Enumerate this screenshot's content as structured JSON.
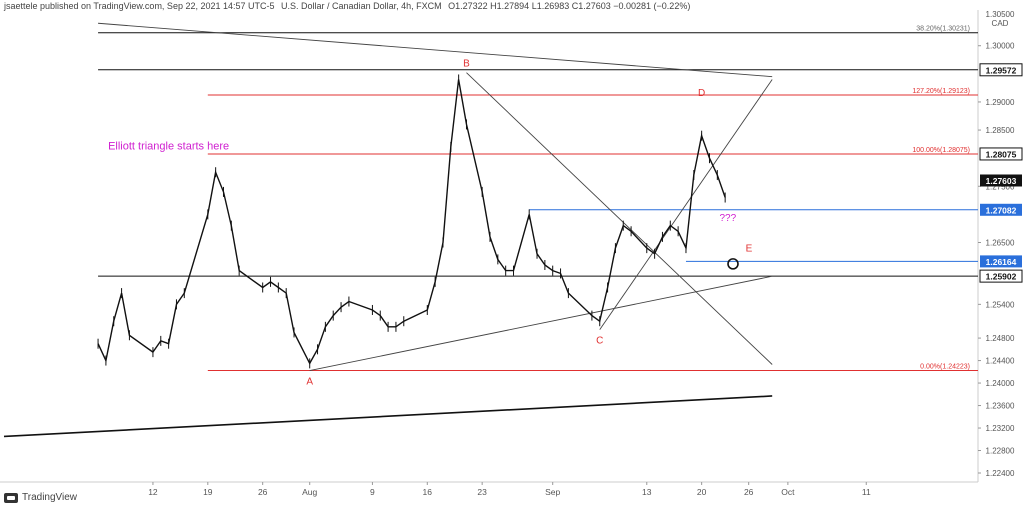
{
  "header": {
    "publisher": "jsaettele published on TradingView.com, Sep 22, 2021 14:57 UTC-5",
    "symbol": "U.S. Dollar / Canadian Dollar, 4h, FXCM",
    "ohlc": "O1.27322  H1.27894  L1.26983  C1.27603  −0.00281 (−0.22%)"
  },
  "footer": {
    "brand": "TradingView"
  },
  "colors": {
    "red": "#e03030",
    "blue": "#2a6fdb",
    "magenta": "#d020d0",
    "candle": "#111111",
    "line": "#444444"
  },
  "chart_data": {
    "type": "line",
    "price_axis": {
      "currency": "CAD",
      "top_label": "1.30500",
      "ticks": [
        "1.30000",
        "1.29000",
        "1.28500",
        "1.27500",
        "1.26500",
        "1.25400",
        "1.24800",
        "1.24400",
        "1.24000",
        "1.23600",
        "1.23200",
        "1.22800",
        "1.22400"
      ],
      "ylim": [
        1.2224,
        1.306
      ]
    },
    "time_axis": {
      "ticks": [
        "12",
        "19",
        "26",
        "Aug",
        "9",
        "16",
        "23",
        "Sep",
        "13",
        "20",
        "26",
        "Oct",
        "11"
      ]
    },
    "price_badges": [
      {
        "label": "1.29572",
        "value": 1.29572,
        "style": "black"
      },
      {
        "label": "1.28075",
        "value": 1.28075,
        "style": "black"
      },
      {
        "label": "1.27603",
        "value": 1.27603,
        "style": "dark"
      },
      {
        "label": "1.27082",
        "value": 1.27082,
        "style": "blue"
      },
      {
        "label": "1.26164",
        "value": 1.26164,
        "style": "blue"
      },
      {
        "label": "1.25902",
        "value": 1.25902,
        "style": "black"
      }
    ],
    "fib_levels": [
      {
        "label": "38.20%(1.30231)",
        "value": 1.30231,
        "color": "#666666"
      },
      {
        "label": "127.20%(1.29123)",
        "value": 1.29123,
        "color": "#e03030"
      },
      {
        "label": "100.00%(1.28075)",
        "value": 1.28075,
        "color": "#e03030"
      },
      {
        "label": "0.00%(1.24223)",
        "value": 1.24223,
        "color": "#e03030"
      }
    ],
    "wave_labels": [
      {
        "label": "A",
        "date": "2021-08-01",
        "price": 1.24223,
        "pos": "below"
      },
      {
        "label": "B",
        "date": "2021-08-21",
        "price": 1.2952,
        "pos": "above"
      },
      {
        "label": "C",
        "date": "2021-09-07",
        "price": 1.2495,
        "pos": "below"
      },
      {
        "label": "D",
        "date": "2021-09-20",
        "price": 1.29,
        "pos": "above"
      },
      {
        "label": "E",
        "date": "2021-09-24",
        "price": 1.2623,
        "pos": "right"
      }
    ],
    "annotations": [
      {
        "text": "Elliott triangle starts here",
        "date": "2021-07-05",
        "price": 1.2815,
        "color": "#d020d0"
      },
      {
        "text": "???",
        "date": "2021-09-21",
        "price": 1.2688,
        "color": "#d020d0"
      }
    ],
    "series": [
      {
        "values": [
          [
            "2021-07-05",
            1.247
          ],
          [
            "2021-07-06",
            1.244
          ],
          [
            "2021-07-07",
            1.251
          ],
          [
            "2021-07-08",
            1.256
          ],
          [
            "2021-07-09",
            1.2485
          ],
          [
            "2021-07-12",
            1.2455
          ],
          [
            "2021-07-13",
            1.2475
          ],
          [
            "2021-07-14",
            1.247
          ],
          [
            "2021-07-15",
            1.254
          ],
          [
            "2021-07-16",
            1.256
          ],
          [
            "2021-07-19",
            1.27
          ],
          [
            "2021-07-20",
            1.2775
          ],
          [
            "2021-07-21",
            1.274
          ],
          [
            "2021-07-22",
            1.268
          ],
          [
            "2021-07-23",
            1.26
          ],
          [
            "2021-07-26",
            1.257
          ],
          [
            "2021-07-27",
            1.258
          ],
          [
            "2021-07-28",
            1.257
          ],
          [
            "2021-07-29",
            1.256
          ],
          [
            "2021-07-30",
            1.249
          ],
          [
            "2021-08-01",
            1.2435
          ],
          [
            "2021-08-02",
            1.246
          ],
          [
            "2021-08-03",
            1.25
          ],
          [
            "2021-08-04",
            1.252
          ],
          [
            "2021-08-05",
            1.2535
          ],
          [
            "2021-08-06",
            1.2545
          ],
          [
            "2021-08-09",
            1.253
          ],
          [
            "2021-08-10",
            1.252
          ],
          [
            "2021-08-11",
            1.25
          ],
          [
            "2021-08-12",
            1.25
          ],
          [
            "2021-08-13",
            1.251
          ],
          [
            "2021-08-16",
            1.253
          ],
          [
            "2021-08-17",
            1.258
          ],
          [
            "2021-08-18",
            1.265
          ],
          [
            "2021-08-19",
            1.282
          ],
          [
            "2021-08-20",
            1.294
          ],
          [
            "2021-08-21",
            1.286
          ],
          [
            "2021-08-23",
            1.274
          ],
          [
            "2021-08-24",
            1.266
          ],
          [
            "2021-08-25",
            1.262
          ],
          [
            "2021-08-26",
            1.26
          ],
          [
            "2021-08-27",
            1.26
          ],
          [
            "2021-08-29",
            1.27
          ],
          [
            "2021-08-30",
            1.263
          ],
          [
            "2021-08-31",
            1.261
          ],
          [
            "2021-09-01",
            1.26
          ],
          [
            "2021-09-02",
            1.2595
          ],
          [
            "2021-09-03",
            1.256
          ],
          [
            "2021-09-06",
            1.252
          ],
          [
            "2021-09-07",
            1.251
          ],
          [
            "2021-09-08",
            1.257
          ],
          [
            "2021-09-09",
            1.264
          ],
          [
            "2021-09-10",
            1.268
          ],
          [
            "2021-09-11",
            1.267
          ],
          [
            "2021-09-13",
            1.264
          ],
          [
            "2021-09-14",
            1.263
          ],
          [
            "2021-09-15",
            1.266
          ],
          [
            "2021-09-16",
            1.268
          ],
          [
            "2021-09-17",
            1.267
          ],
          [
            "2021-09-18",
            1.264
          ],
          [
            "2021-09-19",
            1.277
          ],
          [
            "2021-09-20",
            1.284
          ],
          [
            "2021-09-21",
            1.28
          ],
          [
            "2021-09-22",
            1.277
          ],
          [
            "2021-09-23",
            1.273
          ]
        ]
      }
    ],
    "trendlines": [
      {
        "from": [
          "2021-08-01",
          1.24223
        ],
        "to": [
          "2021-09-29",
          1.259
        ]
      },
      {
        "from": [
          "2021-08-21",
          1.2952
        ],
        "to": [
          "2021-09-29",
          1.2433
        ]
      },
      {
        "from": [
          "2021-09-07",
          1.2495
        ],
        "to": [
          "2021-09-29",
          1.294
        ]
      },
      {
        "from": [
          "2021-06-23",
          1.2305
        ],
        "to": [
          "2021-09-29",
          1.2377
        ]
      },
      {
        "from": [
          "2021-07-05",
          1.304
        ],
        "to": [
          "2021-09-29",
          1.2945
        ]
      }
    ],
    "zones": [
      {
        "value": 1.29572,
        "from": "2021-07-05",
        "to": "2021-09-29",
        "color": "#111111"
      },
      {
        "value": 1.30231,
        "from": "2021-07-05",
        "to": "2021-09-29",
        "color": "#111111"
      },
      {
        "value": 1.29123,
        "from": "2021-07-19",
        "to": "2021-09-29",
        "color": "#e03030"
      },
      {
        "value": 1.28075,
        "from": "2021-07-19",
        "to": "2021-09-29",
        "color": "#e03030"
      },
      {
        "value": 1.27082,
        "from": "2021-08-29",
        "to": "2021-09-29",
        "color": "#2a6fdb"
      },
      {
        "value": 1.26164,
        "from": "2021-09-18",
        "to": "2021-09-29",
        "color": "#2a6fdb"
      },
      {
        "value": 1.25902,
        "from": "2021-07-05",
        "to": "2021-09-29",
        "color": "#111111"
      },
      {
        "value": 1.24223,
        "from": "2021-07-19",
        "to": "2021-09-29",
        "color": "#e03030"
      }
    ],
    "circle_marker": {
      "date": "2021-09-24",
      "price": 1.2612
    },
    "grid": false,
    "legend": "none"
  }
}
